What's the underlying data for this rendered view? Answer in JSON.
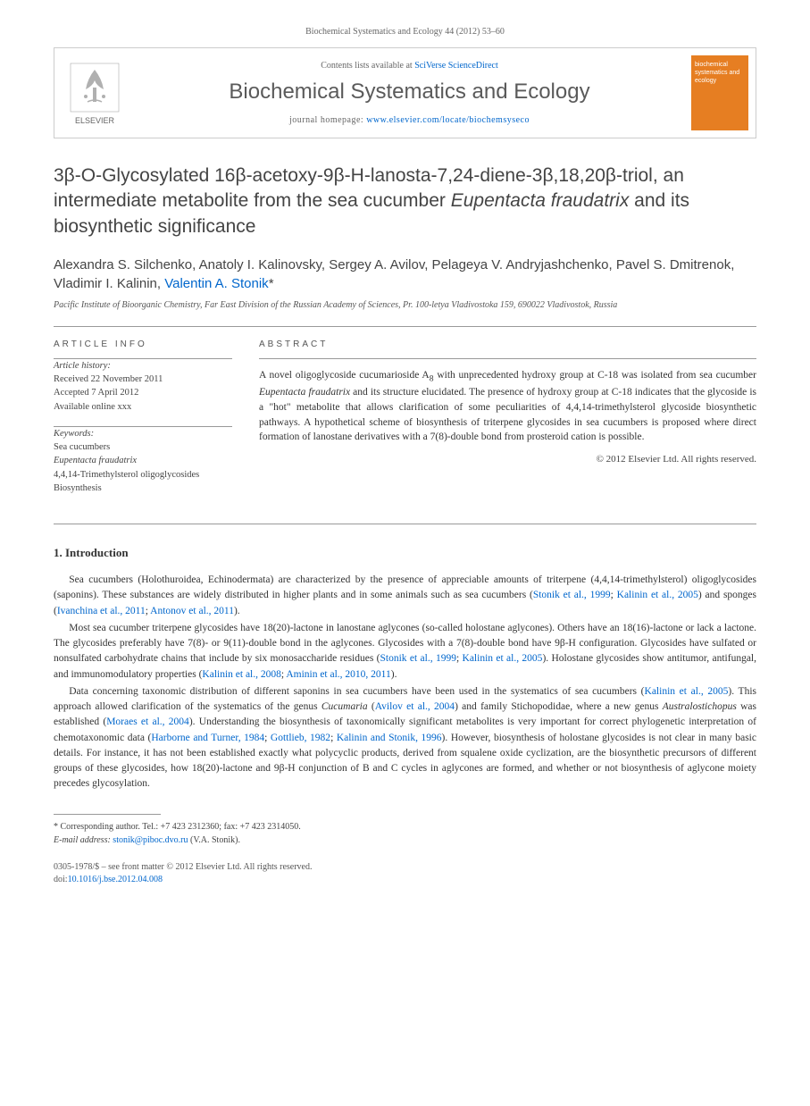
{
  "journal_ref": "Biochemical Systematics and Ecology 44 (2012) 53–60",
  "header": {
    "contents_prefix": "Contents lists available at ",
    "contents_link": "SciVerse ScienceDirect",
    "journal_name": "Biochemical Systematics and Ecology",
    "homepage_prefix": "journal homepage: ",
    "homepage_url": "www.elsevier.com/locate/biochemsyseco",
    "elsevier_label": "ELSEVIER",
    "cover_text": "biochemical systematics and ecology"
  },
  "title_html": "3β-O-Glycosylated 16β-acetoxy-9β-H-lanosta-7,24-diene-3β,18,20β-triol, an intermediate metabolite from the sea cucumber <em>Eupentacta fraudatrix</em> and its biosynthetic significance",
  "authors_html": "Alexandra S. Silchenko, Anatoly I. Kalinovsky, Sergey A. Avilov, Pelageya V. Andryjashchenko, Pavel S. Dmitrenok, Vladimir I. Kalinin, <a class=\"author-link\" href=\"#\">Valentin A. Stonik</a>*",
  "affiliation": "Pacific Institute of Bioorganic Chemistry, Far East Division of the Russian Academy of Sciences, Pr. 100-letya Vladivostoka 159, 690022 Vladivostok, Russia",
  "article_info": {
    "heading": "ARTICLE INFO",
    "history_label": "Article history:",
    "received": "Received 22 November 2011",
    "accepted": "Accepted 7 April 2012",
    "online": "Available online xxx",
    "keywords_label": "Keywords:",
    "keywords": [
      "Sea cucumbers",
      "Eupentacta fraudatrix",
      "4,4,14-Trimethylsterol oligoglycosides",
      "Biosynthesis"
    ]
  },
  "abstract": {
    "heading": "ABSTRACT",
    "text_html": "A novel oligoglycoside cucumarioside A<sub>8</sub> with unprecedented hydroxy group at C-18 was isolated from sea cucumber <em>Eupentacta fraudatrix</em> and its structure elucidated. The presence of hydroxy group at C-18 indicates that the glycoside is a \"hot\" metabolite that allows clarification of some peculiarities of 4,4,14-trimethylsterol glycoside biosynthetic pathways. A hypothetical scheme of biosynthesis of triterpene glycosides in sea cucumbers is proposed where direct formation of lanostane derivatives with a 7(8)-double bond from prosteroid cation is possible.",
    "copyright": "© 2012 Elsevier Ltd. All rights reserved."
  },
  "intro": {
    "heading": "1. Introduction",
    "paras_html": [
      "Sea cucumbers (Holothuroidea, Echinodermata) are characterized by the presence of appreciable amounts of triterpene (4,4,14-trimethylsterol) oligoglycosides (saponins). These substances are widely distributed in higher plants and in some animals such as sea cucumbers (<span class=\"cite\">Stonik et al., 1999</span>; <span class=\"cite\">Kalinin et al., 2005</span>) and sponges (<span class=\"cite\">Ivanchina et al., 2011</span>; <span class=\"cite\">Antonov et al., 2011</span>).",
      "Most sea cucumber triterpene glycosides have 18(20)-lactone in lanostane aglycones (so-called holostane aglycones). Others have an 18(16)-lactone or lack a lactone. The glycosides preferably have 7(8)- or 9(11)-double bond in the aglycones. Glycosides with a 7(8)-double bond have 9β-H configuration. Glycosides have sulfated or nonsulfated carbohydrate chains that include by six monosaccharide residues (<span class=\"cite\">Stonik et al., 1999</span>; <span class=\"cite\">Kalinin et al., 2005</span>). Holostane glycosides show antitumor, antifungal, and immunomodulatory properties (<span class=\"cite\">Kalinin et al., 2008</span>; <span class=\"cite\">Aminin et al., 2010, 2011</span>).",
      "Data concerning taxonomic distribution of different saponins in sea cucumbers have been used in the systematics of sea cucumbers (<span class=\"cite\">Kalinin et al., 2005</span>). This approach allowed clarification of the systematics of the genus <em>Cucumaria</em> (<span class=\"cite\">Avilov et al., 2004</span>) and family Stichopodidae, where a new genus <em>Australostichopus</em> was established (<span class=\"cite\">Moraes et al., 2004</span>). Understanding the biosynthesis of taxonomically significant metabolites is very important for correct phylogenetic interpretation of chemotaxonomic data (<span class=\"cite\">Harborne and Turner, 1984</span>; <span class=\"cite\">Gottlieb, 1982</span>; <span class=\"cite\">Kalinin and Stonik, 1996</span>). However, biosynthesis of holostane glycosides is not clear in many basic details. For instance, it has not been established exactly what polycyclic products, derived from squalene oxide cyclization, are the biosynthetic precursors of different groups of these glycosides, how 18(20)-lactone and 9β-H conjunction of B and C cycles in aglycones are formed, and whether or not biosynthesis of aglycone moiety precedes glycosylation."
    ]
  },
  "footnote": {
    "corr": "* Corresponding author. Tel.: +7 423 2312360; fax: +7 423 2314050.",
    "email_label": "E-mail address:",
    "email": "stonik@piboc.dvo.ru",
    "email_suffix": "(V.A. Stonik)."
  },
  "bottom": {
    "line1": "0305-1978/$ – see front matter © 2012 Elsevier Ltd. All rights reserved.",
    "doi_prefix": "doi:",
    "doi": "10.1016/j.bse.2012.04.008"
  },
  "colors": {
    "link": "#0066cc",
    "cover_bg": "#e67e22",
    "text": "#333333",
    "border": "#cccccc"
  }
}
